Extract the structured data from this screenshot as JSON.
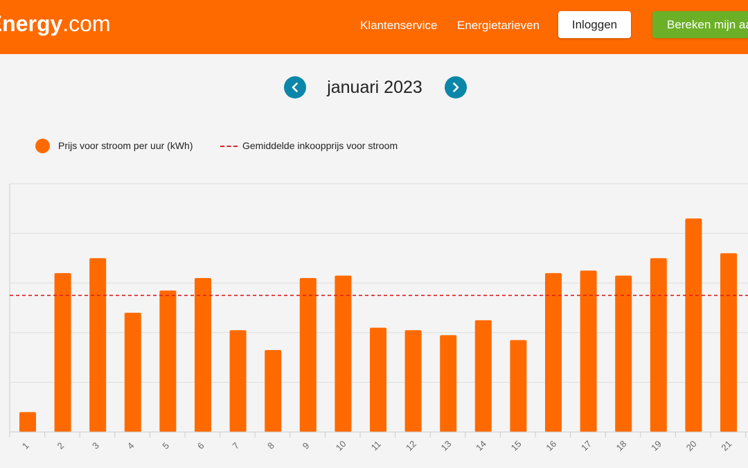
{
  "header": {
    "logo_bold": "yEnergy",
    "logo_suffix": ".com",
    "nav": [
      "Klantenservice",
      "Energietarieven"
    ],
    "login_label": "Inloggen",
    "calculate_label": "Bereken mijn aa"
  },
  "month_nav": {
    "title": "januari 2023",
    "prev_icon": "chevron-left-icon",
    "next_icon": "chevron-right-icon"
  },
  "legend": {
    "series_label": "Prijs voor stroom per uur (kWh)",
    "average_label": "Gemiddelde inkoopprijs voor stroom"
  },
  "colors": {
    "brand_orange": "#ff6a00",
    "nav_button_teal": "#0c86a8",
    "calc_button_green": "#6bb026",
    "average_line_red": "#e02020"
  },
  "chart_data": {
    "type": "bar",
    "categories": [
      "1",
      "2",
      "3",
      "4",
      "5",
      "6",
      "7",
      "8",
      "9",
      "10",
      "11",
      "12",
      "13",
      "14",
      "15",
      "16",
      "17",
      "18",
      "19",
      "20",
      "21"
    ],
    "series": [
      {
        "name": "Prijs voor stroom per uur (kWh)",
        "values": [
          0.08,
          0.64,
          0.7,
          0.48,
          0.57,
          0.62,
          0.41,
          0.33,
          0.62,
          0.63,
          0.42,
          0.41,
          0.39,
          0.45,
          0.37,
          0.64,
          0.65,
          0.63,
          0.7,
          0.86,
          0.72
        ]
      }
    ],
    "average": 0.55,
    "ylim": [
      0,
      1.0
    ],
    "grid": true,
    "legend_position": "top-left"
  }
}
